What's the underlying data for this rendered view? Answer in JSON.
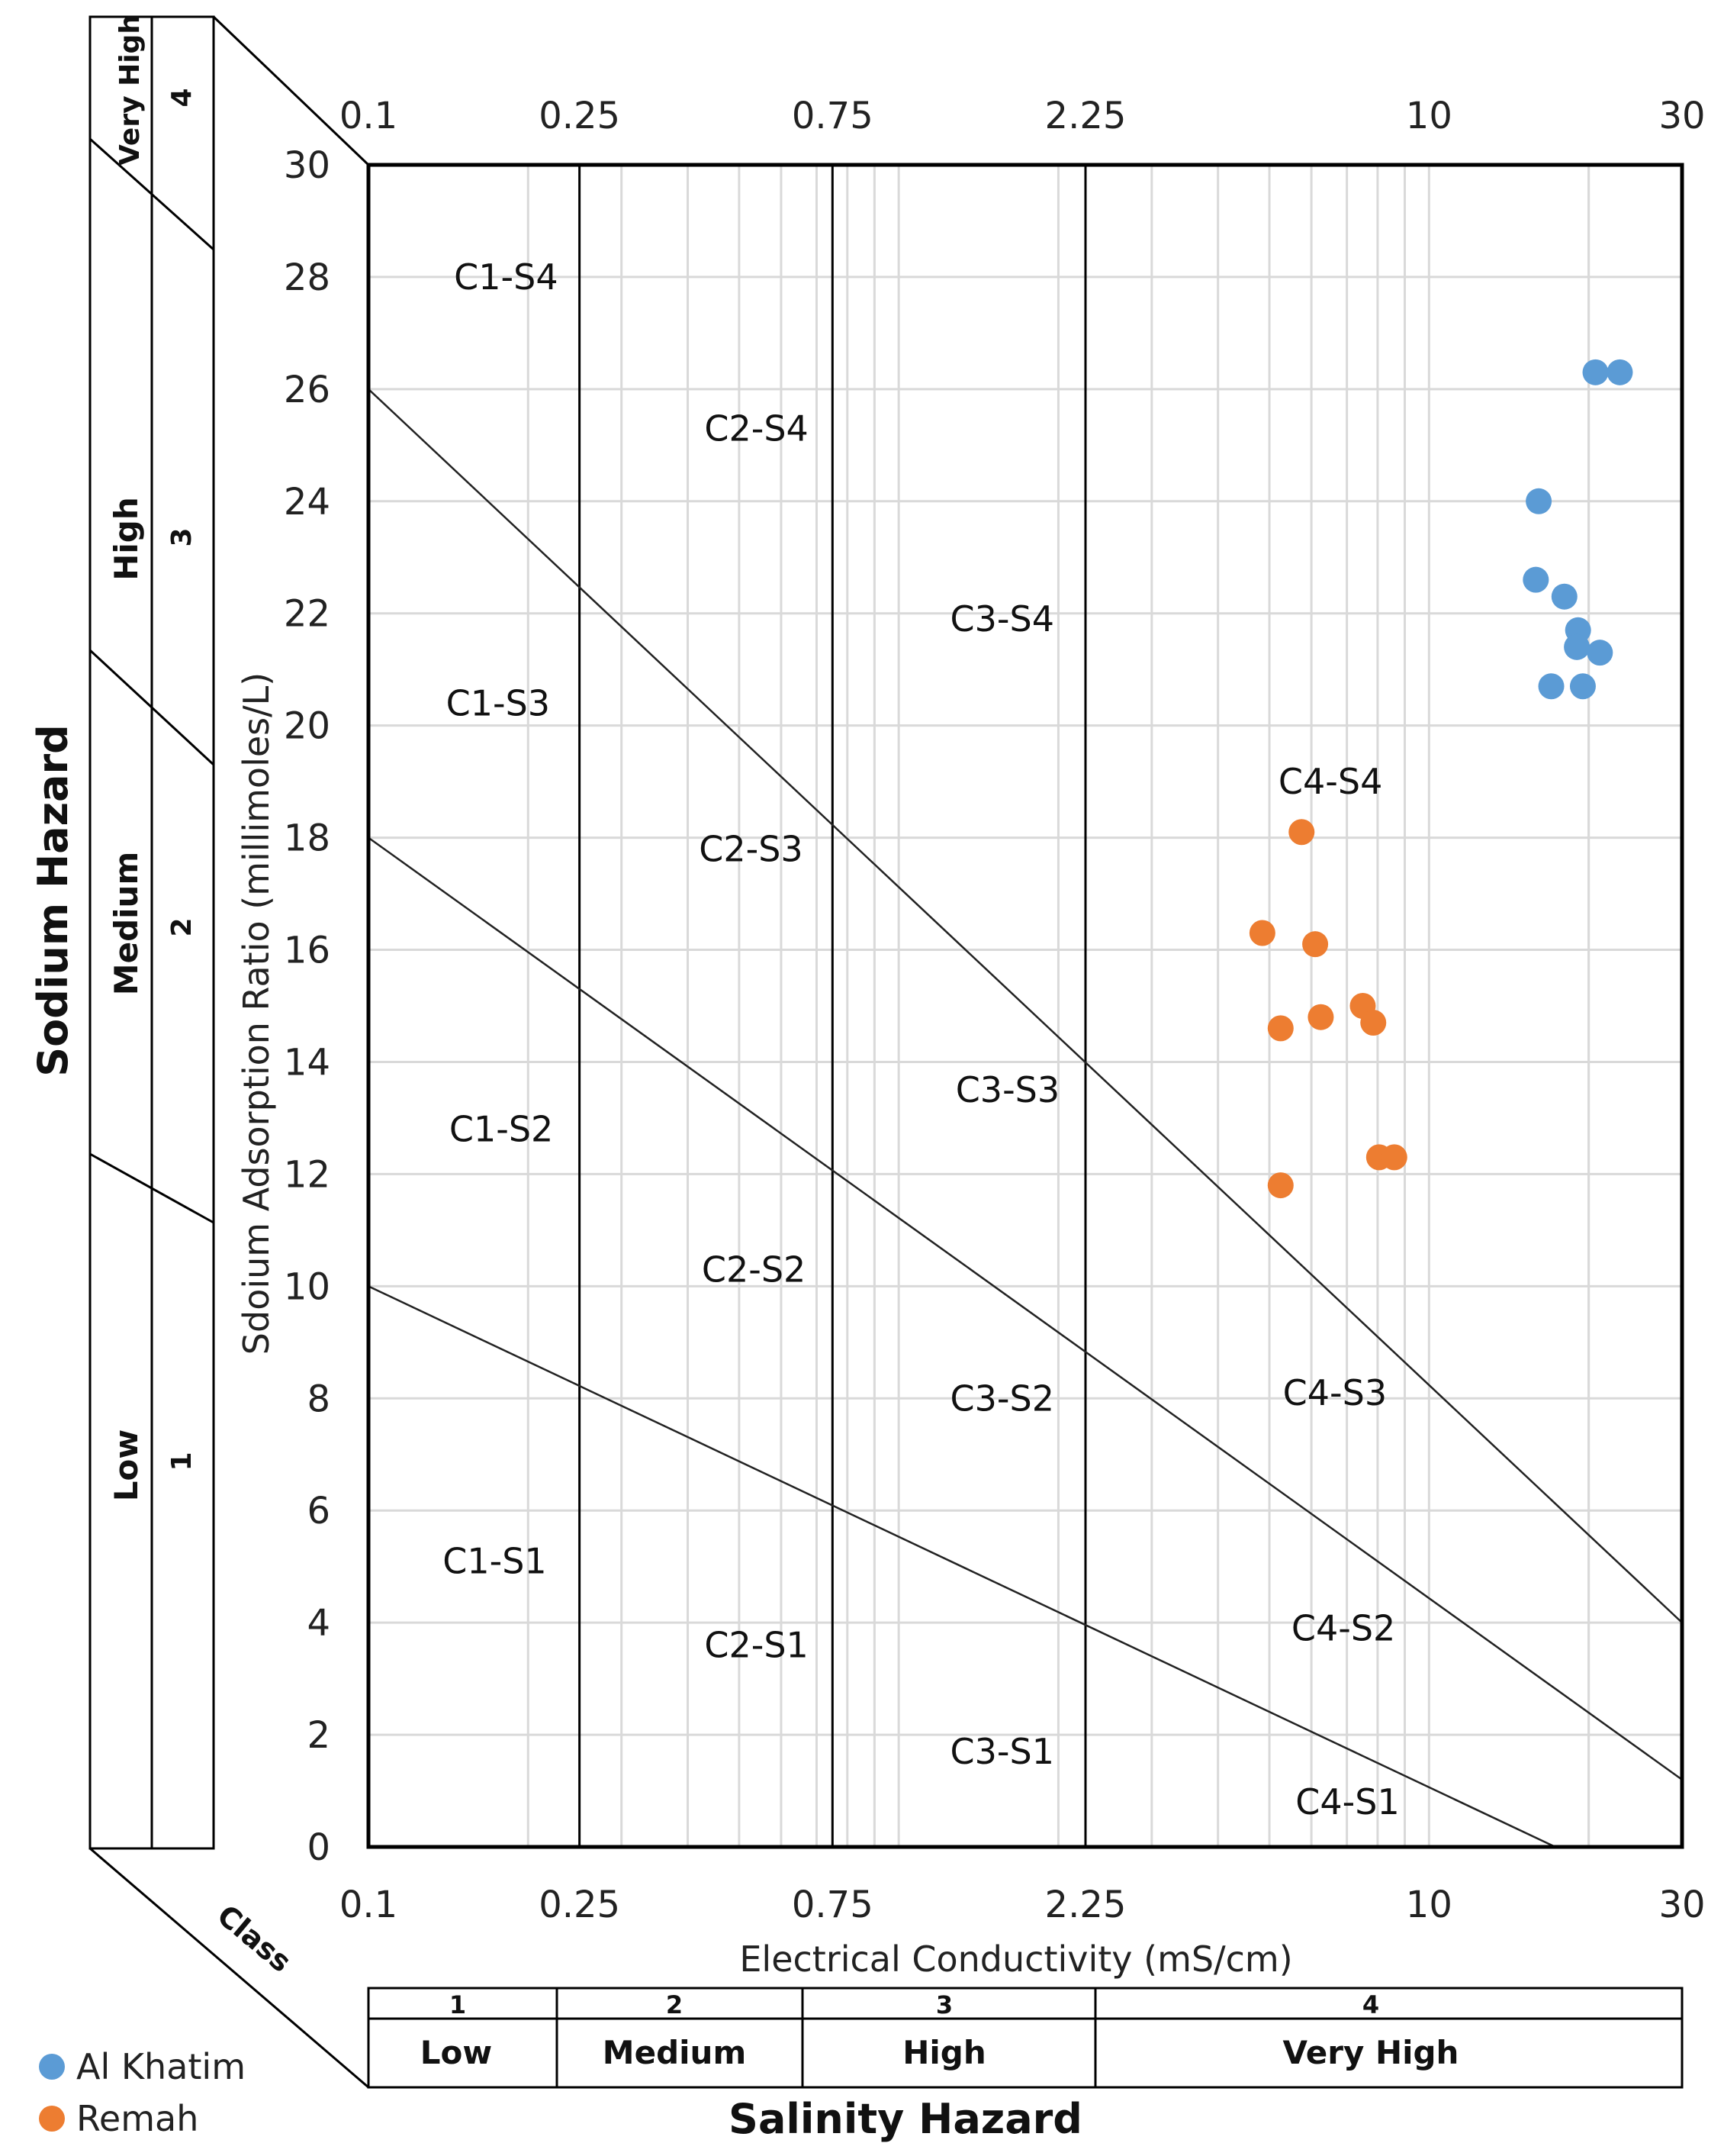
{
  "chart_data": {
    "type": "scatter",
    "title": "",
    "xlabel": "Electrical Conductivity (mS/cm)",
    "ylabel": "Sdoium Adsorption Ratio (millimoles/L)",
    "x_scale": "log",
    "xlim": [
      0.1,
      30
    ],
    "ylim": [
      0,
      30
    ],
    "x_ticks": [
      {
        "value": 0.1,
        "label": "0.1"
      },
      {
        "value": 0.25,
        "label": "0.25"
      },
      {
        "value": 0.75,
        "label": "0.75"
      },
      {
        "value": 2.25,
        "label": "2.25"
      },
      {
        "value": 10,
        "label": "10"
      },
      {
        "value": 30,
        "label": "30"
      }
    ],
    "y_ticks": [
      0,
      2,
      4,
      6,
      8,
      10,
      12,
      14,
      16,
      18,
      20,
      22,
      24,
      26,
      28,
      30
    ],
    "class_boundaries": [
      0.25,
      0.75,
      2.25
    ],
    "hazard_lines": [
      {
        "name": "S1-S2",
        "points": [
          [
            0.1,
            10
          ],
          [
            17.3,
            0
          ]
        ]
      },
      {
        "name": "S2-S3",
        "points": [
          [
            0.1,
            18
          ],
          [
            30,
            1.2
          ]
        ]
      },
      {
        "name": "S3-S4",
        "points": [
          [
            0.1,
            26
          ],
          [
            30,
            4
          ]
        ]
      }
    ],
    "zone_labels": [
      {
        "text": "C1-S4",
        "x": 0.145,
        "y": 28
      },
      {
        "text": "C2-S4",
        "x": 0.43,
        "y": 25.3
      },
      {
        "text": "C3-S4",
        "x": 1.25,
        "y": 21.9
      },
      {
        "text": "C1-S3",
        "x": 0.14,
        "y": 20.4
      },
      {
        "text": "C4-S4",
        "x": 5.2,
        "y": 19
      },
      {
        "text": "C2-S3",
        "x": 0.42,
        "y": 17.8
      },
      {
        "text": "C3-S3",
        "x": 1.28,
        "y": 13.5
      },
      {
        "text": "C1-S2",
        "x": 0.142,
        "y": 12.8
      },
      {
        "text": "C2-S2",
        "x": 0.425,
        "y": 10.3
      },
      {
        "text": "C4-S3",
        "x": 5.3,
        "y": 8.1
      },
      {
        "text": "C3-S2",
        "x": 1.25,
        "y": 8.0
      },
      {
        "text": "C1-S1",
        "x": 0.138,
        "y": 5.1
      },
      {
        "text": "C4-S2",
        "x": 5.5,
        "y": 3.9
      },
      {
        "text": "C2-S1",
        "x": 0.43,
        "y": 3.6
      },
      {
        "text": "C3-S1",
        "x": 1.25,
        "y": 1.7
      },
      {
        "text": "C4-S1",
        "x": 5.6,
        "y": 0.8
      }
    ],
    "series": [
      {
        "name": "Al Khatim",
        "color": "#5B9BD5",
        "points": [
          [
            20.6,
            26.3
          ],
          [
            22.9,
            26.3
          ],
          [
            16.1,
            24.0
          ],
          [
            15.9,
            22.6
          ],
          [
            18.0,
            22.3
          ],
          [
            19.1,
            21.7
          ],
          [
            19.0,
            21.4
          ],
          [
            21.0,
            21.3
          ],
          [
            17.0,
            20.7
          ],
          [
            19.5,
            20.7
          ]
        ]
      },
      {
        "name": "Remah",
        "color": "#ED7D31",
        "points": [
          [
            5.75,
            18.1
          ],
          [
            4.85,
            16.3
          ],
          [
            6.1,
            16.1
          ],
          [
            7.5,
            15.0
          ],
          [
            6.25,
            14.8
          ],
          [
            7.85,
            14.7
          ],
          [
            5.25,
            14.6
          ],
          [
            8.05,
            12.3
          ],
          [
            8.6,
            12.3
          ],
          [
            5.25,
            11.8
          ]
        ]
      }
    ]
  },
  "sodium_hazard": {
    "title": "Sodium Hazard",
    "levels": [
      {
        "name": "Very High",
        "number": "4"
      },
      {
        "name": "High",
        "number": "3"
      },
      {
        "name": "Medium",
        "number": "2"
      },
      {
        "name": "Low",
        "number": "1"
      }
    ]
  },
  "salinity_hazard": {
    "title": "Salinity Hazard",
    "class_label": "Class",
    "levels": [
      {
        "number": "1",
        "name": "Low"
      },
      {
        "number": "2",
        "name": "Medium"
      },
      {
        "number": "3",
        "name": "High"
      },
      {
        "number": "4",
        "name": "Very High"
      }
    ]
  },
  "legend": [
    {
      "label": "Al Khatim",
      "color": "#5B9BD5"
    },
    {
      "label": "Remah",
      "color": "#ED7D31"
    }
  ]
}
